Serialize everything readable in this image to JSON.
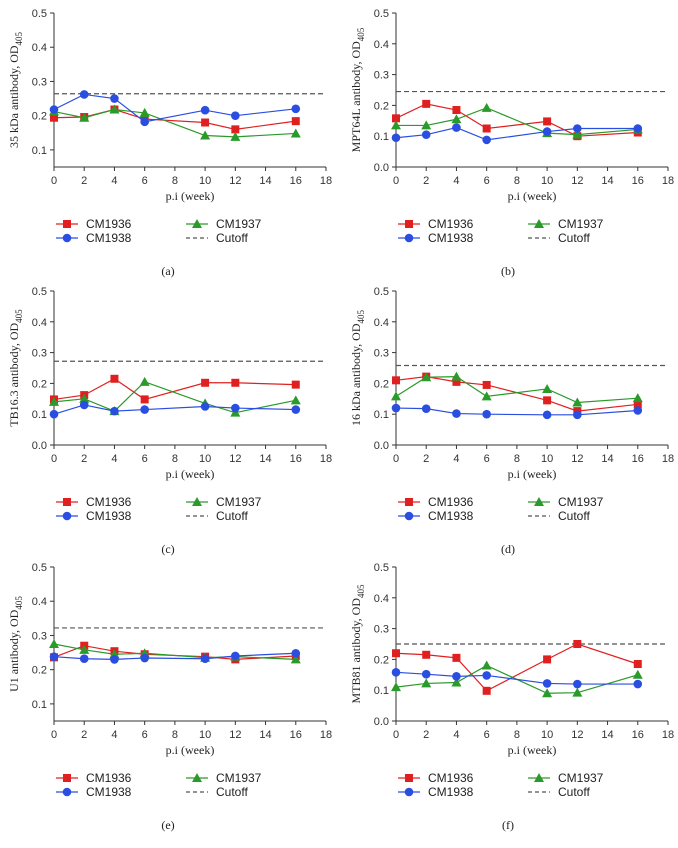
{
  "figure": {
    "colors": {
      "CM1936": "#e02020",
      "CM1937": "#2a9a2a",
      "CM1938": "#2a4ee0",
      "Cutoff": "#555555"
    }
  },
  "chart_data": [
    {
      "type": "line",
      "panel_label": "(a)",
      "ylabel_main": "35 kDa antibody, OD",
      "ylabel_sub": "405",
      "xlabel": "p.i (week)",
      "xlim": [
        0,
        18
      ],
      "ylim": [
        0.05,
        0.5
      ],
      "xticks": [
        "0",
        "2",
        "4",
        "6",
        "8",
        "10",
        "12",
        "14",
        "16",
        "18"
      ],
      "yticks": [
        "0.1",
        "0.2",
        "0.3",
        "0.4",
        "0.5"
      ],
      "x": [
        0,
        2,
        4,
        6,
        10,
        12,
        16
      ],
      "series": [
        {
          "name": "CM1936",
          "marker": "square",
          "values": [
            0.194,
            0.196,
            0.218,
            0.19,
            0.18,
            0.16,
            0.184
          ]
        },
        {
          "name": "CM1937",
          "marker": "triangle",
          "values": [
            0.212,
            0.194,
            0.218,
            0.208,
            0.142,
            0.138,
            0.148
          ]
        },
        {
          "name": "CM1938",
          "marker": "circle",
          "values": [
            0.218,
            0.262,
            0.25,
            0.182,
            0.216,
            0.2,
            0.22
          ]
        }
      ],
      "cutoff": {
        "name": "Cutoff",
        "value": 0.264
      }
    },
    {
      "type": "line",
      "panel_label": "(b)",
      "ylabel_main": "MPT64L antibody, OD",
      "ylabel_sub": "405",
      "xlabel": "p.i (week)",
      "xlim": [
        0,
        18
      ],
      "ylim": [
        0,
        0.5
      ],
      "xticks": [
        "0",
        "2",
        "4",
        "6",
        "8",
        "10",
        "12",
        "14",
        "16",
        "18"
      ],
      "yticks": [
        "0.0",
        "0.1",
        "0.2",
        "0.3",
        "0.4",
        "0.5"
      ],
      "x": [
        0,
        2,
        4,
        6,
        10,
        12,
        16
      ],
      "series": [
        {
          "name": "CM1936",
          "marker": "square",
          "values": [
            0.158,
            0.205,
            0.185,
            0.125,
            0.148,
            0.1,
            0.112
          ]
        },
        {
          "name": "CM1937",
          "marker": "triangle",
          "values": [
            0.135,
            0.135,
            0.155,
            0.192,
            0.11,
            0.105,
            0.122
          ]
        },
        {
          "name": "CM1938",
          "marker": "circle",
          "values": [
            0.095,
            0.105,
            0.128,
            0.088,
            0.115,
            0.125,
            0.125
          ]
        }
      ],
      "cutoff": {
        "name": "Cutoff",
        "value": 0.245
      }
    },
    {
      "type": "line",
      "panel_label": "(c)",
      "ylabel_main": "TB16.3 antibody, OD",
      "ylabel_sub": "405",
      "xlabel": "p.i (week)",
      "xlim": [
        0,
        18
      ],
      "ylim": [
        0,
        0.5
      ],
      "xticks": [
        "0",
        "2",
        "4",
        "6",
        "8",
        "10",
        "12",
        "14",
        "16",
        "18"
      ],
      "yticks": [
        "0.0",
        "0.1",
        "0.2",
        "0.3",
        "0.4",
        "0.5"
      ],
      "x": [
        0,
        2,
        4,
        6,
        10,
        12,
        16
      ],
      "series": [
        {
          "name": "CM1936",
          "marker": "square",
          "values": [
            0.148,
            0.162,
            0.215,
            0.148,
            0.202,
            0.202,
            0.196
          ]
        },
        {
          "name": "CM1937",
          "marker": "triangle",
          "values": [
            0.14,
            0.15,
            0.11,
            0.205,
            0.135,
            0.105,
            0.145
          ]
        },
        {
          "name": "CM1938",
          "marker": "circle",
          "values": [
            0.1,
            0.13,
            0.11,
            0.115,
            0.125,
            0.12,
            0.115
          ]
        }
      ],
      "cutoff": {
        "name": "Cutoff",
        "value": 0.272
      }
    },
    {
      "type": "line",
      "panel_label": "(d)",
      "ylabel_main": "16 kDa antibody, OD",
      "ylabel_sub": "405",
      "xlabel": "p.i (week)",
      "xlim": [
        0,
        18
      ],
      "ylim": [
        0,
        0.5
      ],
      "xticks": [
        "0",
        "2",
        "4",
        "6",
        "8",
        "10",
        "12",
        "14",
        "16",
        "18"
      ],
      "yticks": [
        "0.0",
        "0.1",
        "0.2",
        "0.3",
        "0.4",
        "0.5"
      ],
      "x": [
        0,
        2,
        4,
        6,
        10,
        12,
        16
      ],
      "series": [
        {
          "name": "CM1936",
          "marker": "square",
          "values": [
            0.21,
            0.222,
            0.205,
            0.195,
            0.145,
            0.11,
            0.132
          ]
        },
        {
          "name": "CM1937",
          "marker": "triangle",
          "values": [
            0.158,
            0.22,
            0.222,
            0.158,
            0.182,
            0.138,
            0.152
          ]
        },
        {
          "name": "CM1938",
          "marker": "circle",
          "values": [
            0.12,
            0.118,
            0.102,
            0.1,
            0.098,
            0.098,
            0.112
          ]
        }
      ],
      "cutoff": {
        "name": "Cutoff",
        "value": 0.258
      }
    },
    {
      "type": "line",
      "panel_label": "(e)",
      "ylabel_main": "U1 antibody, OD",
      "ylabel_sub": "405",
      "xlabel": "p.i (week)",
      "xlim": [
        0,
        18
      ],
      "ylim": [
        0.05,
        0.5
      ],
      "xticks": [
        "0",
        "2",
        "4",
        "6",
        "8",
        "10",
        "12",
        "14",
        "16",
        "18"
      ],
      "yticks": [
        "0.1",
        "0.2",
        "0.3",
        "0.4",
        "0.5"
      ],
      "x": [
        0,
        2,
        4,
        6,
        10,
        12,
        16
      ],
      "series": [
        {
          "name": "CM1936",
          "marker": "square",
          "values": [
            0.236,
            0.27,
            0.254,
            0.245,
            0.238,
            0.23,
            0.24
          ]
        },
        {
          "name": "CM1937",
          "marker": "triangle",
          "values": [
            0.275,
            0.258,
            0.245,
            0.248,
            0.235,
            0.238,
            0.23
          ]
        },
        {
          "name": "CM1938",
          "marker": "circle",
          "values": [
            0.238,
            0.232,
            0.23,
            0.234,
            0.232,
            0.24,
            0.248
          ]
        }
      ],
      "cutoff": {
        "name": "Cutoff",
        "value": 0.322
      }
    },
    {
      "type": "line",
      "panel_label": "(f)",
      "ylabel_main": "MTB81 antibody, OD",
      "ylabel_sub": "405",
      "xlabel": "p.i (week)",
      "xlim": [
        0,
        18
      ],
      "ylim": [
        0,
        0.5
      ],
      "xticks": [
        "0",
        "2",
        "4",
        "6",
        "8",
        "10",
        "12",
        "14",
        "16",
        "18"
      ],
      "yticks": [
        "0.0",
        "0.1",
        "0.2",
        "0.3",
        "0.4",
        "0.5"
      ],
      "x": [
        0,
        2,
        4,
        6,
        10,
        12,
        16
      ],
      "series": [
        {
          "name": "CM1936",
          "marker": "square",
          "values": [
            0.22,
            0.215,
            0.205,
            0.098,
            0.2,
            0.25,
            0.185
          ]
        },
        {
          "name": "CM1937",
          "marker": "triangle",
          "values": [
            0.11,
            0.122,
            0.125,
            0.18,
            0.09,
            0.092,
            0.15
          ]
        },
        {
          "name": "CM1938",
          "marker": "circle",
          "values": [
            0.158,
            0.152,
            0.145,
            0.148,
            0.122,
            0.12,
            0.12
          ]
        }
      ],
      "cutoff": {
        "name": "Cutoff",
        "value": 0.25
      }
    }
  ]
}
